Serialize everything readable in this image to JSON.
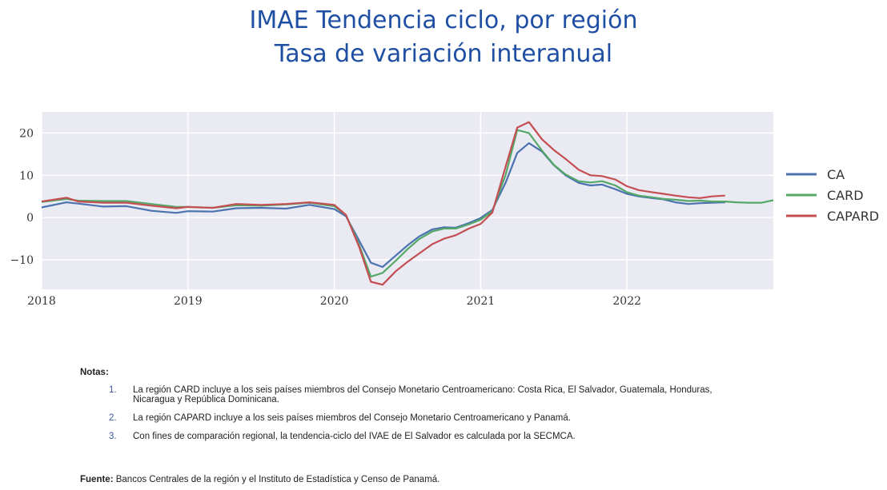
{
  "title": "IMAE Tendencia ciclo, por región",
  "subtitle": "Tasa de variación interanual",
  "chart_data": {
    "type": "line",
    "x_range": [
      2018.0,
      2023.0
    ],
    "ylim": [
      -17,
      25
    ],
    "x_ticks": [
      2018,
      2019,
      2020,
      2021,
      2022
    ],
    "x_tick_labels": [
      "2018",
      "2019",
      "2020",
      "2021",
      "2022"
    ],
    "y_ticks": [
      -10,
      0,
      10,
      20
    ],
    "y_tick_labels": [
      "−10",
      "0",
      "10",
      "20"
    ],
    "grid": true,
    "legend_position": "right",
    "series": [
      {
        "name": "CA",
        "color": "#4c72b0",
        "x": [
          2018.0,
          2018.17,
          2018.25,
          2018.42,
          2018.58,
          2018.75,
          2018.92,
          2019.0,
          2019.17,
          2019.33,
          2019.5,
          2019.67,
          2019.83,
          2020.0,
          2020.08,
          2020.17,
          2020.25,
          2020.33,
          2020.42,
          2020.5,
          2020.58,
          2020.67,
          2020.75,
          2020.83,
          2020.92,
          2021.0,
          2021.08,
          2021.17,
          2021.25,
          2021.33,
          2021.42,
          2021.5,
          2021.58,
          2021.67,
          2021.75,
          2021.83,
          2021.92,
          2022.0,
          2022.08,
          2022.17,
          2022.25,
          2022.33,
          2022.42,
          2022.5,
          2022.58,
          2022.67
        ],
        "y": [
          2.4,
          3.6,
          3.3,
          2.6,
          2.7,
          1.6,
          1.1,
          1.5,
          1.4,
          2.2,
          2.3,
          2.1,
          3.0,
          2.0,
          0.3,
          -5.5,
          -10.7,
          -11.7,
          -9.0,
          -6.6,
          -4.5,
          -2.8,
          -2.3,
          -2.4,
          -1.3,
          -0.1,
          1.8,
          8.2,
          15.3,
          17.6,
          15.6,
          12.4,
          10.0,
          8.2,
          7.6,
          7.8,
          6.7,
          5.6,
          5.0,
          4.6,
          4.3,
          3.6,
          3.2,
          3.4,
          3.5,
          3.6
        ]
      },
      {
        "name": "CARD",
        "color": "#55a868",
        "x": [
          2018.0,
          2018.17,
          2018.25,
          2018.42,
          2018.58,
          2018.75,
          2018.92,
          2019.0,
          2019.17,
          2019.33,
          2019.5,
          2019.67,
          2019.83,
          2020.0,
          2020.08,
          2020.17,
          2020.25,
          2020.33,
          2020.42,
          2020.5,
          2020.58,
          2020.67,
          2020.75,
          2020.83,
          2020.92,
          2021.0,
          2021.08,
          2021.17,
          2021.25,
          2021.33,
          2021.42,
          2021.5,
          2021.58,
          2021.67,
          2021.75,
          2021.83,
          2021.92,
          2022.0,
          2022.08,
          2022.17,
          2022.25,
          2022.33,
          2022.42,
          2022.5,
          2022.58,
          2022.67,
          2022.75,
          2022.83,
          2022.92,
          2023.0
        ],
        "y": [
          3.7,
          4.4,
          4.0,
          3.9,
          3.9,
          3.2,
          2.5,
          2.5,
          2.3,
          2.9,
          2.8,
          3.1,
          3.5,
          2.7,
          0.6,
          -6.5,
          -14.0,
          -13.1,
          -10.2,
          -7.5,
          -5.1,
          -3.3,
          -2.6,
          -2.6,
          -1.6,
          -0.5,
          1.5,
          10.0,
          20.7,
          20.0,
          15.8,
          12.5,
          10.2,
          8.6,
          8.3,
          8.6,
          7.6,
          6.0,
          5.2,
          4.8,
          4.4,
          4.2,
          3.9,
          4.0,
          3.8,
          3.8,
          3.6,
          3.5,
          3.5,
          4.1
        ]
      },
      {
        "name": "CAPARD",
        "color": "#c44e52",
        "x": [
          2018.0,
          2018.17,
          2018.25,
          2018.42,
          2018.58,
          2018.75,
          2018.92,
          2019.0,
          2019.17,
          2019.33,
          2019.5,
          2019.67,
          2019.83,
          2020.0,
          2020.08,
          2020.17,
          2020.25,
          2020.33,
          2020.42,
          2020.5,
          2020.58,
          2020.67,
          2020.75,
          2020.83,
          2020.92,
          2021.0,
          2021.08,
          2021.17,
          2021.25,
          2021.33,
          2021.42,
          2021.5,
          2021.58,
          2021.67,
          2021.75,
          2021.83,
          2021.92,
          2022.0,
          2022.08,
          2022.17,
          2022.25,
          2022.33,
          2022.42,
          2022.5,
          2022.58,
          2022.67
        ],
        "y": [
          3.8,
          4.7,
          3.8,
          3.5,
          3.5,
          2.8,
          2.2,
          2.5,
          2.3,
          3.2,
          3.0,
          3.2,
          3.6,
          3.0,
          0.6,
          -7.0,
          -15.2,
          -15.9,
          -12.7,
          -10.5,
          -8.5,
          -6.3,
          -5.0,
          -4.2,
          -2.6,
          -1.5,
          1.2,
          12.0,
          21.3,
          22.6,
          18.5,
          16.0,
          13.9,
          11.3,
          10.0,
          9.8,
          9.0,
          7.4,
          6.5,
          6.0,
          5.6,
          5.2,
          4.8,
          4.6,
          5.0,
          5.2
        ]
      }
    ]
  },
  "notes": {
    "heading": "Notas:",
    "items": [
      {
        "num": "1.",
        "text": "La región CARD incluye a los seis países miembros del Consejo Monetario Centroamericano: Costa Rica, El Salvador, Guatemala, Honduras, Nicaragua y República Dominicana."
      },
      {
        "num": "2.",
        "text": "La región CAPARD incluye a los seis países miembros del Consejo Monetario Centroamericano y Panamá."
      },
      {
        "num": "3.",
        "text": "Con fines de comparación regional, la tendencia-ciclo del IVAE de El Salvador es calculada por la SECMCA."
      }
    ]
  },
  "source": {
    "label": "Fuente:",
    "text": " Bancos Centrales de la región y el Instituto de Estadística y Censo de Panamá."
  }
}
